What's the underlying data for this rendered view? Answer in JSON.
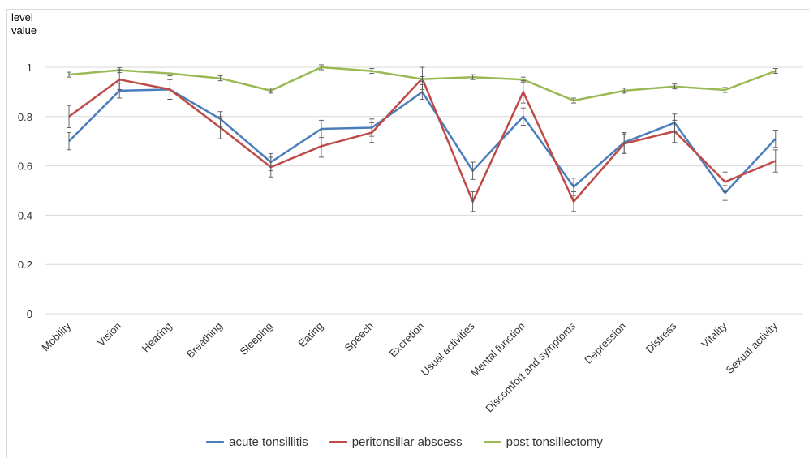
{
  "chart_data": {
    "type": "line",
    "title": "",
    "ylabel_lines": [
      "level",
      "value"
    ],
    "xlabel": "",
    "ylim": [
      0,
      1
    ],
    "yticks": [
      0,
      0.2,
      0.4,
      0.6,
      0.8,
      1
    ],
    "ytick_labels": [
      "0",
      "0.2",
      "0.4",
      "0.6",
      "0.8",
      "1"
    ],
    "grid": "horizontal",
    "legend_position": "bottom",
    "categories": [
      "Mobility",
      "Vision",
      "Hearing",
      "Breathing",
      "Sleeping",
      "Eating",
      "Speech",
      "Excretion",
      "Usual activities",
      "Mental function",
      "Discomfort and symptoms",
      "Depression",
      "Distress",
      "Vitality",
      "Sexual activity"
    ],
    "series": [
      {
        "name": "acute tonsillitis",
        "color": "#4a7ebb",
        "values": [
          0.7,
          0.905,
          0.91,
          0.79,
          0.615,
          0.75,
          0.755,
          0.9,
          0.58,
          0.8,
          0.515,
          0.695,
          0.775,
          0.49,
          0.71
        ],
        "errors": [
          0.035,
          0.03,
          0.04,
          0.03,
          0.035,
          0.035,
          0.035,
          0.03,
          0.035,
          0.035,
          0.035,
          0.04,
          0.035,
          0.03,
          0.035
        ]
      },
      {
        "name": "peritonsillar abscess",
        "color": "#be4b48",
        "values": [
          0.8,
          0.95,
          0.91,
          0.755,
          0.595,
          0.68,
          0.735,
          0.955,
          0.455,
          0.9,
          0.455,
          0.69,
          0.74,
          0.535,
          0.62
        ],
        "errors": [
          0.045,
          0.04,
          0.04,
          0.045,
          0.04,
          0.045,
          0.04,
          0.045,
          0.04,
          0.045,
          0.04,
          0.04,
          0.045,
          0.04,
          0.045
        ]
      },
      {
        "name": "post tonsillectomy",
        "color": "#98b954",
        "values": [
          0.97,
          0.988,
          0.975,
          0.955,
          0.905,
          1.0,
          0.985,
          0.952,
          0.96,
          0.95,
          0.865,
          0.905,
          0.922,
          0.908,
          0.985
        ],
        "errors": [
          0.01,
          0.01,
          0.01,
          0.01,
          0.01,
          0.01,
          0.01,
          0.01,
          0.01,
          0.01,
          0.01,
          0.01,
          0.01,
          0.01,
          0.01
        ]
      }
    ]
  }
}
